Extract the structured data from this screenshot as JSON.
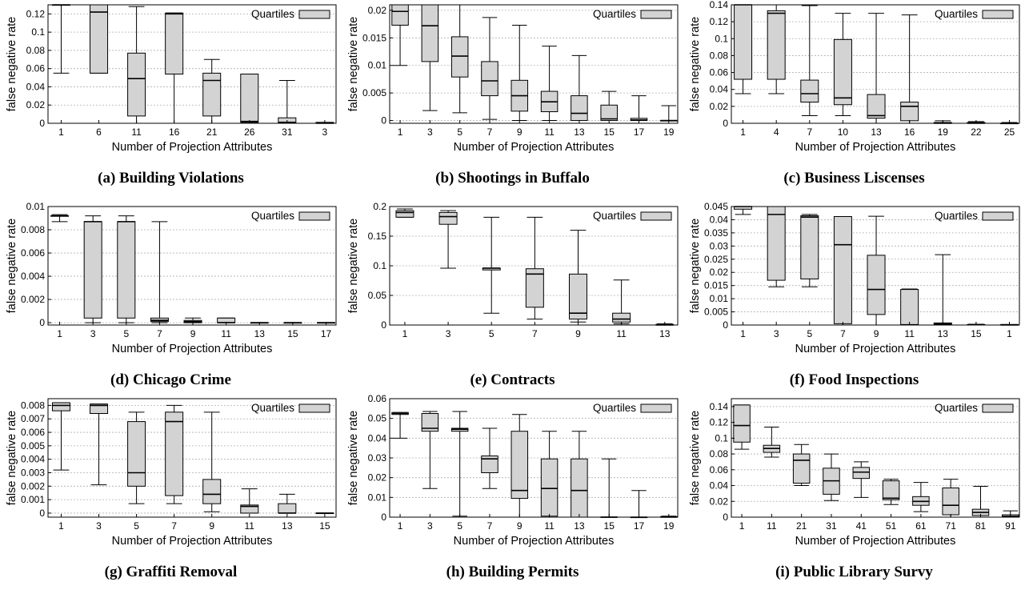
{
  "legend_label": "Quartiles",
  "xlabel": "Number of Projection Attributes",
  "ylabel": "false negative rate",
  "colors": {
    "box_fill": "#d3d3d3",
    "stroke": "#000000",
    "grid": "#b0b0b0"
  },
  "chart_data": [
    {
      "type": "box",
      "caption": "(a) Building Violations",
      "xlabel": "Number of Projection Attributes",
      "ylabel": "false negative rate",
      "ylim": [
        0,
        0.13
      ],
      "yticks": [
        0,
        0.02,
        0.04,
        0.06,
        0.08,
        0.1,
        0.12
      ],
      "ytick_labels": [
        "0",
        "0.02",
        "0.04",
        "0.06",
        "0.08",
        "0.1",
        "0.12"
      ],
      "xticks": [
        "1",
        "6",
        "11",
        "16",
        "21",
        "26",
        "31",
        "3"
      ],
      "legend": "top-right",
      "boxes": [
        {
          "x": "1",
          "min": 0.055,
          "q1": 0.13,
          "median": 0.13,
          "q3": 0.13,
          "max": 0.13
        },
        {
          "x": "6",
          "min": 0.055,
          "q1": 0.055,
          "median": 0.122,
          "q3": 0.13,
          "max": 0.13
        },
        {
          "x": "11",
          "min": 0.0,
          "q1": 0.008,
          "median": 0.049,
          "q3": 0.077,
          "max": 0.128
        },
        {
          "x": "16",
          "min": 0.0,
          "q1": 0.054,
          "median": 0.12,
          "q3": 0.121,
          "max": 0.121
        },
        {
          "x": "21",
          "min": 0.0,
          "q1": 0.008,
          "median": 0.047,
          "q3": 0.055,
          "max": 0.07
        },
        {
          "x": "26",
          "min": 0.0,
          "q1": 0.001,
          "median": 0.002,
          "q3": 0.054,
          "max": 0.054
        },
        {
          "x": "31",
          "min": 0.0,
          "q1": 0.0,
          "median": 0.001,
          "q3": 0.006,
          "max": 0.047
        },
        {
          "x": "3",
          "min": 0.0,
          "q1": 0.0,
          "median": 0.0,
          "q3": 0.001,
          "max": 0.001
        }
      ]
    },
    {
      "type": "box",
      "caption": "(b) Shootings in Buffalo",
      "xlabel": "Number of Projection Attributes",
      "ylabel": "false negative rate",
      "ylim": [
        -0.0005,
        0.021
      ],
      "yticks": [
        0,
        0.005,
        0.01,
        0.015,
        0.02
      ],
      "ytick_labels": [
        "0",
        "0.005",
        "0.01",
        "0.015",
        "0.02"
      ],
      "xticks": [
        "1",
        "3",
        "5",
        "7",
        "9",
        "11",
        "13",
        "15",
        "17",
        "19"
      ],
      "legend": "top-right",
      "boxes": [
        {
          "x": "1",
          "min": 0.01,
          "q1": 0.0173,
          "median": 0.0198,
          "q3": 0.021,
          "max": 0.021
        },
        {
          "x": "3",
          "min": 0.0018,
          "q1": 0.0107,
          "median": 0.0172,
          "q3": 0.021,
          "max": 0.021
        },
        {
          "x": "5",
          "min": 0.0014,
          "q1": 0.0079,
          "median": 0.0117,
          "q3": 0.0152,
          "max": 0.021
        },
        {
          "x": "7",
          "min": 0.0002,
          "q1": 0.0045,
          "median": 0.0072,
          "q3": 0.0107,
          "max": 0.0187
        },
        {
          "x": "9",
          "min": 0.0,
          "q1": 0.0017,
          "median": 0.0045,
          "q3": 0.0073,
          "max": 0.0173
        },
        {
          "x": "11",
          "min": 0.0,
          "q1": 0.0016,
          "median": 0.0034,
          "q3": 0.0053,
          "max": 0.0135
        },
        {
          "x": "13",
          "min": 0.0,
          "q1": 0.0,
          "median": 0.0013,
          "q3": 0.0045,
          "max": 0.0118
        },
        {
          "x": "15",
          "min": 0.0,
          "q1": 0.0,
          "median": 0.0003,
          "q3": 0.0028,
          "max": 0.0053
        },
        {
          "x": "17",
          "min": 0.0,
          "q1": 0.0,
          "median": 0.0001,
          "q3": 0.0004,
          "max": 0.0045
        },
        {
          "x": "19",
          "min": 0.0,
          "q1": 0.0,
          "median": 0.0,
          "q3": 0.0,
          "max": 0.0027
        }
      ]
    },
    {
      "type": "box",
      "caption": "(c) Business Liscenses",
      "xlabel": "Number of Projection Attributes",
      "ylabel": "false negative rate",
      "ylim": [
        0,
        0.14
      ],
      "yticks": [
        0,
        0.02,
        0.04,
        0.06,
        0.08,
        0.1,
        0.12,
        0.14
      ],
      "ytick_labels": [
        "0",
        "0.02",
        "0.04",
        "0.06",
        "0.08",
        "0.1",
        "0.12",
        "0.14"
      ],
      "xticks": [
        "1",
        "4",
        "7",
        "10",
        "13",
        "16",
        "19",
        "22",
        "25"
      ],
      "legend": "top-right",
      "boxes": [
        {
          "x": "1",
          "min": 0.035,
          "q1": 0.052,
          "median": 0.14,
          "q3": 0.14,
          "max": 0.14
        },
        {
          "x": "4",
          "min": 0.035,
          "q1": 0.052,
          "median": 0.13,
          "q3": 0.133,
          "max": 0.14
        },
        {
          "x": "7",
          "min": 0.009,
          "q1": 0.025,
          "median": 0.035,
          "q3": 0.051,
          "max": 0.139
        },
        {
          "x": "10",
          "min": 0.009,
          "q1": 0.022,
          "median": 0.03,
          "q3": 0.099,
          "max": 0.13
        },
        {
          "x": "13",
          "min": 0.0,
          "q1": 0.006,
          "median": 0.009,
          "q3": 0.034,
          "max": 0.13
        },
        {
          "x": "16",
          "min": 0.0,
          "q1": 0.003,
          "median": 0.02,
          "q3": 0.025,
          "max": 0.128
        },
        {
          "x": "19",
          "min": 0.0,
          "q1": 0.0,
          "median": 0.0,
          "q3": 0.001,
          "max": 0.003
        },
        {
          "x": "22",
          "min": 0.0,
          "q1": 0.0,
          "median": 0.0,
          "q3": 0.001,
          "max": 0.002
        },
        {
          "x": "25",
          "min": 0.0,
          "q1": 0.0,
          "median": 0.0,
          "q3": 0.0,
          "max": 0.001
        }
      ]
    },
    {
      "type": "box",
      "caption": "(d) Chicago Crime",
      "xlabel": "Number of Projection Attributes",
      "ylabel": "false negative rate",
      "ylim": [
        -0.0002,
        0.01
      ],
      "yticks": [
        0,
        0.002,
        0.004,
        0.006,
        0.008,
        0.01
      ],
      "ytick_labels": [
        "0",
        "0.002",
        "0.004",
        "0.006",
        "0.008",
        "0.01"
      ],
      "xticks": [
        "1",
        "3",
        "5",
        "7",
        "9",
        "11",
        "13",
        "15",
        "17"
      ],
      "legend": "top-right",
      "boxes": [
        {
          "x": "1",
          "min": 0.0087,
          "q1": 0.0092,
          "median": 0.0092,
          "q3": 0.0092,
          "max": 0.0093
        },
        {
          "x": "3",
          "min": 0.0,
          "q1": 0.0004,
          "median": 0.0087,
          "q3": 0.0087,
          "max": 0.0092
        },
        {
          "x": "5",
          "min": 0.0,
          "q1": 0.0004,
          "median": 0.0087,
          "q3": 0.0087,
          "max": 0.0092
        },
        {
          "x": "7",
          "min": 0.0,
          "q1": 0.0001,
          "median": 0.0002,
          "q3": 0.0004,
          "max": 0.0087
        },
        {
          "x": "9",
          "min": 0.0,
          "q1": 0.0,
          "median": 0.0001,
          "q3": 0.0002,
          "max": 0.0004
        },
        {
          "x": "11",
          "min": 0.0,
          "q1": 0.0,
          "median": 0.0,
          "q3": 0.0004,
          "max": 0.0004
        },
        {
          "x": "13",
          "min": 0.0,
          "q1": 0.0,
          "median": 0.0,
          "q3": 0.0,
          "max": 0.0
        },
        {
          "x": "15",
          "min": 0.0,
          "q1": 0.0,
          "median": 0.0,
          "q3": 0.0,
          "max": 0.0
        },
        {
          "x": "17",
          "min": 0.0,
          "q1": 0.0,
          "median": 0.0,
          "q3": 0.0,
          "max": 0.0
        }
      ]
    },
    {
      "type": "box",
      "caption": "(e) Contracts",
      "xlabel": "",
      "ylabel": "false negative rate",
      "ylim": [
        0,
        0.2
      ],
      "yticks": [
        0,
        0.05,
        0.1,
        0.15,
        0.2
      ],
      "ytick_labels": [
        "0",
        "0.05",
        "0.1",
        "0.15",
        "0.2"
      ],
      "xticks": [
        "1",
        "3",
        "5",
        "7",
        "9",
        "11",
        "13"
      ],
      "legend": "top-right",
      "boxes": [
        {
          "x": "1",
          "min": 0.182,
          "q1": 0.182,
          "median": 0.19,
          "q3": 0.193,
          "max": 0.196
        },
        {
          "x": "3",
          "min": 0.096,
          "q1": 0.17,
          "median": 0.183,
          "q3": 0.19,
          "max": 0.193
        },
        {
          "x": "5",
          "min": 0.02,
          "q1": 0.093,
          "median": 0.096,
          "q3": 0.096,
          "max": 0.182
        },
        {
          "x": "7",
          "min": 0.01,
          "q1": 0.03,
          "median": 0.086,
          "q3": 0.095,
          "max": 0.182
        },
        {
          "x": "9",
          "min": 0.005,
          "q1": 0.01,
          "median": 0.02,
          "q3": 0.086,
          "max": 0.16
        },
        {
          "x": "11",
          "min": 0.002,
          "q1": 0.005,
          "median": 0.01,
          "q3": 0.02,
          "max": 0.076
        },
        {
          "x": "13",
          "min": 0.0,
          "q1": 0.0,
          "median": 0.0,
          "q3": 0.001,
          "max": 0.002
        }
      ]
    },
    {
      "type": "box",
      "caption": "(f) Food Inspections",
      "xlabel": "Number of Projection Attributes",
      "ylabel": "false negative rate",
      "ylim": [
        0,
        0.045
      ],
      "yticks": [
        0,
        0.005,
        0.01,
        0.015,
        0.02,
        0.025,
        0.03,
        0.035,
        0.04,
        0.045
      ],
      "ytick_labels": [
        "0",
        "0.005",
        "0.01",
        "0.015",
        "0.02",
        "0.025",
        "0.03",
        "0.035",
        "0.04",
        "0.045"
      ],
      "xticks": [
        "1",
        "3",
        "5",
        "7",
        "9",
        "11",
        "13",
        "15",
        "1"
      ],
      "legend": "top-right",
      "boxes": [
        {
          "x": "1",
          "min": 0.042,
          "q1": 0.044,
          "median": 0.045,
          "q3": 0.045,
          "max": 0.045
        },
        {
          "x": "3",
          "min": 0.0145,
          "q1": 0.017,
          "median": 0.042,
          "q3": 0.045,
          "max": 0.045
        },
        {
          "x": "5",
          "min": 0.0145,
          "q1": 0.0175,
          "median": 0.041,
          "q3": 0.0415,
          "max": 0.042
        },
        {
          "x": "7",
          "min": 0.0,
          "q1": 0.0005,
          "median": 0.0305,
          "q3": 0.0412,
          "max": 0.0412
        },
        {
          "x": "9",
          "min": 0.0,
          "q1": 0.004,
          "median": 0.0135,
          "q3": 0.0265,
          "max": 0.0413
        },
        {
          "x": "11",
          "min": 0.0,
          "q1": 0.0,
          "median": 0.0001,
          "q3": 0.0135,
          "max": 0.0137
        },
        {
          "x": "13",
          "min": 0.0,
          "q1": 0.0002,
          "median": 0.0004,
          "q3": 0.0008,
          "max": 0.0267
        },
        {
          "x": "15",
          "min": 0.0,
          "q1": 0.0,
          "median": 0.0001,
          "q3": 0.0002,
          "max": 0.0003
        },
        {
          "x": "1",
          "min": 0.0,
          "q1": 0.0,
          "median": 0.0,
          "q3": 0.0002,
          "max": 0.0002
        }
      ]
    },
    {
      "type": "box",
      "caption": "(g) Graffiti Removal",
      "xlabel": "Number of Projection Attributes",
      "ylabel": "false negative rate",
      "ylim": [
        -0.0003,
        0.0085
      ],
      "yticks": [
        0,
        0.001,
        0.002,
        0.003,
        0.004,
        0.005,
        0.006,
        0.007,
        0.008
      ],
      "ytick_labels": [
        "0",
        "0.001",
        "0.002",
        "0.003",
        "0.004",
        "0.005",
        "0.006",
        "0.007",
        "0.008"
      ],
      "xticks": [
        "1",
        "3",
        "5",
        "7",
        "9",
        "11",
        "13",
        "15"
      ],
      "legend": "top-right",
      "boxes": [
        {
          "x": "1",
          "min": 0.0032,
          "q1": 0.0076,
          "median": 0.008,
          "q3": 0.0082,
          "max": 0.0082
        },
        {
          "x": "3",
          "min": 0.0021,
          "q1": 0.0074,
          "median": 0.008,
          "q3": 0.0081,
          "max": 0.0081
        },
        {
          "x": "5",
          "min": 0.0007,
          "q1": 0.002,
          "median": 0.003,
          "q3": 0.0068,
          "max": 0.0075
        },
        {
          "x": "7",
          "min": 0.0007,
          "q1": 0.0013,
          "median": 0.0068,
          "q3": 0.0075,
          "max": 0.008
        },
        {
          "x": "9",
          "min": 0.0001,
          "q1": 0.0007,
          "median": 0.0014,
          "q3": 0.0025,
          "max": 0.0075
        },
        {
          "x": "11",
          "min": 0.0,
          "q1": 0.0,
          "median": 0.0005,
          "q3": 0.0006,
          "max": 0.0018
        },
        {
          "x": "13",
          "min": 0.0,
          "q1": 0.0,
          "median": 0.0,
          "q3": 0.0007,
          "max": 0.0014
        },
        {
          "x": "15",
          "min": 0.0,
          "q1": 0.0,
          "median": 0.0,
          "q3": 0.0,
          "max": 0.0
        }
      ]
    },
    {
      "type": "box",
      "caption": "(h) Building Permits",
      "xlabel": "Number of Projection Attributes",
      "ylabel": "false negative rate",
      "ylim": [
        0,
        0.06
      ],
      "yticks": [
        0,
        0.01,
        0.02,
        0.03,
        0.04,
        0.05,
        0.06
      ],
      "ytick_labels": [
        "0",
        "0.01",
        "0.02",
        "0.03",
        "0.04",
        "0.05",
        "0.06"
      ],
      "xticks": [
        "1",
        "3",
        "5",
        "7",
        "9",
        "11",
        "13",
        "15",
        "17",
        "19"
      ],
      "legend": "top-right",
      "boxes": [
        {
          "x": "1",
          "min": 0.04,
          "q1": 0.052,
          "median": 0.0525,
          "q3": 0.053,
          "max": 0.053
        },
        {
          "x": "3",
          "min": 0.0145,
          "q1": 0.0435,
          "median": 0.045,
          "q3": 0.0525,
          "max": 0.0535
        },
        {
          "x": "5",
          "min": 0.0005,
          "q1": 0.0435,
          "median": 0.0445,
          "q3": 0.045,
          "max": 0.0535
        },
        {
          "x": "7",
          "min": 0.0145,
          "q1": 0.0225,
          "median": 0.0295,
          "q3": 0.031,
          "max": 0.045
        },
        {
          "x": "9",
          "min": 0.0,
          "q1": 0.0095,
          "median": 0.0135,
          "q3": 0.0435,
          "max": 0.052
        },
        {
          "x": "11",
          "min": 0.0,
          "q1": 0.0005,
          "median": 0.0145,
          "q3": 0.0295,
          "max": 0.0435
        },
        {
          "x": "13",
          "min": 0.0,
          "q1": 0.0,
          "median": 0.0135,
          "q3": 0.0295,
          "max": 0.0435
        },
        {
          "x": "15",
          "min": 0.0,
          "q1": 0.0,
          "median": 0.0,
          "q3": 0.0001,
          "max": 0.0295
        },
        {
          "x": "17",
          "min": 0.0,
          "q1": 0.0,
          "median": 0.0,
          "q3": 0.0,
          "max": 0.0135
        },
        {
          "x": "19",
          "min": 0.0,
          "q1": 0.0,
          "median": 0.0,
          "q3": 0.0003,
          "max": 0.0005
        }
      ]
    },
    {
      "type": "box",
      "caption": "(i) Public Library Survy",
      "xlabel": "Number of Projection Attributes",
      "ylabel": "false negative rate",
      "ylim": [
        0,
        0.15
      ],
      "yticks": [
        0,
        0.02,
        0.04,
        0.06,
        0.08,
        0.1,
        0.12,
        0.14
      ],
      "ytick_labels": [
        "0",
        "0.02",
        "0.04",
        "0.06",
        "0.08",
        "0.1",
        "0.12",
        "0.14"
      ],
      "xticks": [
        "1",
        "11",
        "21",
        "31",
        "41",
        "51",
        "61",
        "71",
        "81",
        "91"
      ],
      "legend": "top-right",
      "boxes": [
        {
          "x": "1",
          "min": 0.086,
          "q1": 0.095,
          "median": 0.116,
          "q3": 0.142,
          "max": 0.142
        },
        {
          "x": "11",
          "min": 0.076,
          "q1": 0.082,
          "median": 0.087,
          "q3": 0.091,
          "max": 0.114
        },
        {
          "x": "21",
          "min": 0.04,
          "q1": 0.043,
          "median": 0.072,
          "q3": 0.08,
          "max": 0.092
        },
        {
          "x": "31",
          "min": 0.021,
          "q1": 0.029,
          "median": 0.046,
          "q3": 0.062,
          "max": 0.08
        },
        {
          "x": "41",
          "min": 0.025,
          "q1": 0.049,
          "median": 0.057,
          "q3": 0.063,
          "max": 0.07
        },
        {
          "x": "51",
          "min": 0.016,
          "q1": 0.022,
          "median": 0.024,
          "q3": 0.046,
          "max": 0.048
        },
        {
          "x": "61",
          "min": 0.007,
          "q1": 0.015,
          "median": 0.02,
          "q3": 0.026,
          "max": 0.044
        },
        {
          "x": "71",
          "min": 0.0,
          "q1": 0.003,
          "median": 0.015,
          "q3": 0.037,
          "max": 0.048
        },
        {
          "x": "81",
          "min": 0.0,
          "q1": 0.002,
          "median": 0.006,
          "q3": 0.01,
          "max": 0.039
        },
        {
          "x": "91",
          "min": 0.0,
          "q1": 0.0,
          "median": 0.001,
          "q3": 0.003,
          "max": 0.008
        }
      ]
    }
  ]
}
